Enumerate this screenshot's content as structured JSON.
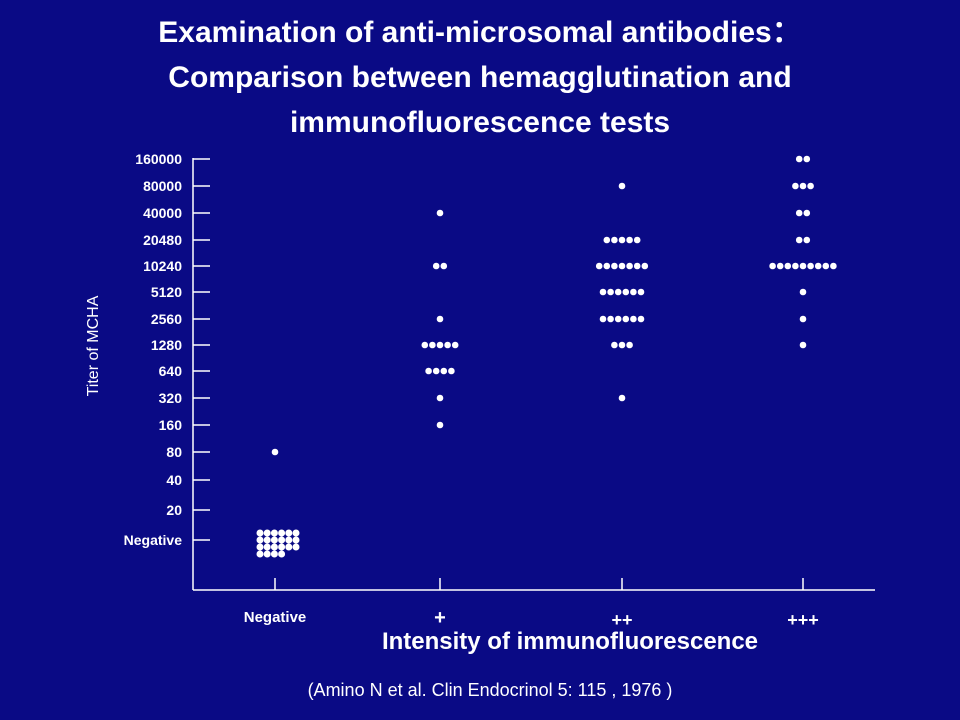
{
  "title": {
    "line1": "Examination of anti-microsomal antibodies：",
    "line2": "Comparison between hemagglutination and",
    "line3": "immunofluorescence tests"
  },
  "citation": "(Amino N et al. Clin Endocrinol 5: 115 , 1976 )",
  "colors": {
    "background": "#0a0a85",
    "foreground": "#ffffff"
  },
  "chart_data": {
    "type": "scatter",
    "xlabel": "Intensity of immunofluorescence",
    "ylabel": "Titer of MCHA",
    "categories": [
      "Negative",
      "+",
      "++",
      "+++"
    ],
    "y_levels": [
      "Negative",
      "20",
      "40",
      "80",
      "160",
      "320",
      "640",
      "1280",
      "2560",
      "5120",
      "10240",
      "20480",
      "40000",
      "80000",
      "160000"
    ],
    "grid": false,
    "counts": [
      {
        "category": "Negative",
        "points": [
          {
            "titer": "Negative",
            "n": 22
          },
          {
            "titer": "80",
            "n": 1
          }
        ]
      },
      {
        "category": "+",
        "points": [
          {
            "titer": "160",
            "n": 1
          },
          {
            "titer": "320",
            "n": 1
          },
          {
            "titer": "640",
            "n": 4
          },
          {
            "titer": "1280",
            "n": 5
          },
          {
            "titer": "2560",
            "n": 1
          },
          {
            "titer": "10240",
            "n": 2
          },
          {
            "titer": "40000",
            "n": 1
          }
        ]
      },
      {
        "category": "++",
        "points": [
          {
            "titer": "320",
            "n": 1
          },
          {
            "titer": "1280",
            "n": 3
          },
          {
            "titer": "2560",
            "n": 6
          },
          {
            "titer": "5120",
            "n": 6
          },
          {
            "titer": "10240",
            "n": 7
          },
          {
            "titer": "20480",
            "n": 5
          },
          {
            "titer": "80000",
            "n": 1
          }
        ]
      },
      {
        "category": "+++",
        "points": [
          {
            "titer": "1280",
            "n": 1
          },
          {
            "titer": "2560",
            "n": 1
          },
          {
            "titer": "5120",
            "n": 1
          },
          {
            "titer": "10240",
            "n": 9
          },
          {
            "titer": "20480",
            "n": 2
          },
          {
            "titer": "40000",
            "n": 2
          },
          {
            "titer": "80000",
            "n": 3
          },
          {
            "titer": "160000",
            "n": 2
          }
        ]
      }
    ]
  }
}
